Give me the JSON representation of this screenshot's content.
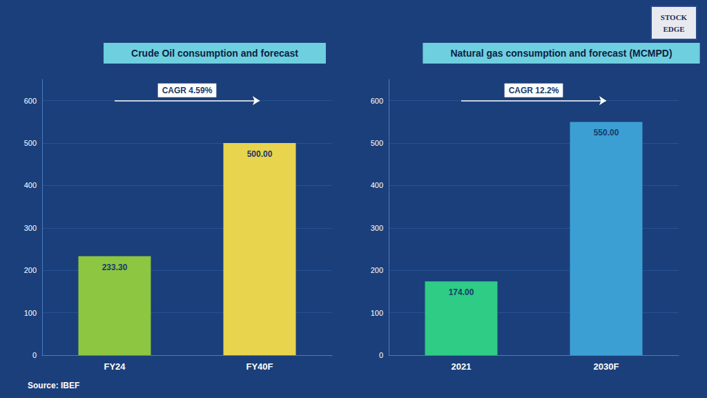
{
  "chart_data": [
    {
      "type": "bar",
      "title": "Crude Oil consumption and forecast",
      "categories": [
        "FY24",
        "FY40F"
      ],
      "values": [
        233.3,
        500.0
      ],
      "colors": [
        "#8dc641",
        "#e8d44d"
      ],
      "value_labels": [
        "233.30",
        "500.00"
      ],
      "data_labels": true,
      "annotations": [
        "CAGR 4.59%"
      ],
      "ylim": [
        0,
        650
      ],
      "yticks": [
        0,
        100,
        200,
        300,
        400,
        500,
        600
      ],
      "grid": true
    },
    {
      "type": "bar",
      "title": "Natural gas consumption and forecast (MCMPD)",
      "categories": [
        "2021",
        "2030F"
      ],
      "values": [
        174.0,
        550.0
      ],
      "colors": [
        "#2ecc85",
        "#3b9fd4"
      ],
      "value_labels": [
        "174.00",
        "550.00"
      ],
      "data_labels": true,
      "annotations": [
        "CAGR 12.2%"
      ],
      "ylim": [
        0,
        650
      ],
      "yticks": [
        0,
        100,
        200,
        300,
        400,
        500,
        600
      ],
      "grid": true
    }
  ],
  "source": "Source: IBEF",
  "logo": [
    "STOCK",
    "EDGE"
  ]
}
